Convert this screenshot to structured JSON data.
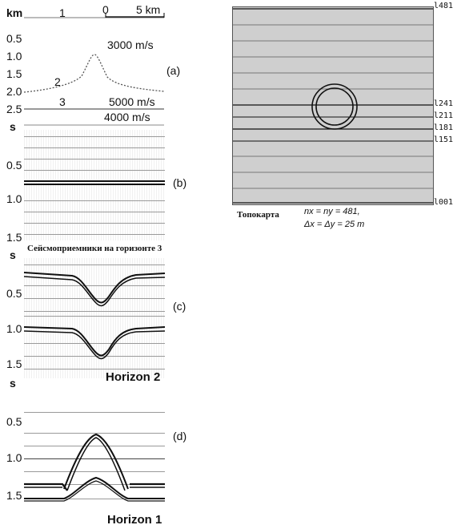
{
  "panel_a": {
    "unit": "km",
    "well_labels": [
      "1",
      "0",
      "5 km"
    ],
    "depth_ticks": [
      "0.5",
      "1.0",
      "1.5",
      "2.0",
      "2.5"
    ],
    "velocities": [
      "3000 m/s",
      "5000 m/s",
      "4000 m/s"
    ],
    "horizon_numbers": [
      "2",
      "3"
    ],
    "tag": "(a)"
  },
  "panel_b": {
    "unit": "s",
    "time_ticks": [
      "0.5",
      "1.0",
      "1.5"
    ],
    "tag": "(b)",
    "caption": "Сейсмоприемники на горизонте 3"
  },
  "panel_c": {
    "unit": "s",
    "time_ticks": [
      "0.5",
      "1.0",
      "1.5"
    ],
    "tag": "(c)",
    "caption": "Horizon 2"
  },
  "panel_d": {
    "unit": "s",
    "time_ticks": [
      "0.5",
      "1.0",
      "1.5"
    ],
    "tag": "(d)",
    "caption": "Horizon 1"
  },
  "topomap": {
    "line_labels": [
      "l481",
      "l241",
      "l211",
      "l181",
      "l151",
      "l001"
    ],
    "title": "Топокарта",
    "params_line1": "nx = ny = 481,",
    "params_line2": "Δx = Δy = 25 m"
  }
}
